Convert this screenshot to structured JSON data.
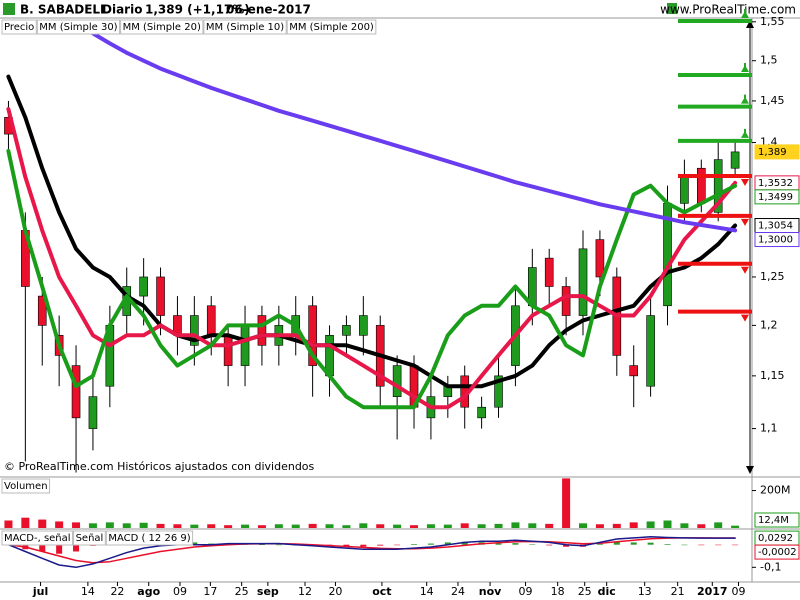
{
  "chart_data": [
    {
      "type": "candlestick",
      "title": "B. SABADELL",
      "period": "Diario",
      "quote": "1,389 (+1,17%)",
      "date": "06-ene-2017",
      "source": "www.ProRealTime.com",
      "note": "© ProRealTime.com Históricos ajustados con dividendos",
      "price_name": "Precio",
      "log_y": true,
      "xlim": [
        -0.5,
        44
      ],
      "ylim": [
        1.056,
        1.555
      ],
      "yticks": [
        {
          "value": 1.1,
          "label": "1,1"
        },
        {
          "value": 1.15,
          "label": "1,15"
        },
        {
          "value": 1.2,
          "label": "1,2"
        },
        {
          "value": 1.25,
          "label": "1,25"
        },
        {
          "value": 1.4,
          "label": "1,4"
        },
        {
          "value": 1.45,
          "label": "1,45"
        },
        {
          "value": 1.5,
          "label": "1,5"
        },
        {
          "value": 1.55,
          "label": "1,55"
        }
      ],
      "up_color": "#1f9a1f",
      "down_color": "#e8102a",
      "open": [
        1.43,
        1.3,
        1.23,
        1.19,
        1.16,
        1.1,
        1.14,
        1.21,
        1.23,
        1.25,
        1.21,
        1.18,
        1.22,
        1.19,
        1.16,
        1.21,
        1.18,
        1.19,
        1.22,
        1.15,
        1.19,
        1.19,
        1.2,
        1.13,
        1.16,
        1.11,
        1.13,
        1.15,
        1.11,
        1.12,
        1.16,
        1.22,
        1.27,
        1.24,
        1.21,
        1.29,
        1.25,
        1.16,
        1.14,
        1.22,
        1.33,
        1.37,
        1.32,
        1.37
      ],
      "high": [
        1.45,
        1.32,
        1.25,
        1.21,
        1.18,
        1.15,
        1.22,
        1.26,
        1.27,
        1.26,
        1.23,
        1.23,
        1.23,
        1.2,
        1.22,
        1.22,
        1.22,
        1.23,
        1.23,
        1.2,
        1.21,
        1.23,
        1.21,
        1.17,
        1.17,
        1.15,
        1.15,
        1.16,
        1.13,
        1.17,
        1.24,
        1.28,
        1.28,
        1.25,
        1.3,
        1.3,
        1.26,
        1.18,
        1.23,
        1.35,
        1.38,
        1.38,
        1.4,
        1.4
      ],
      "low": [
        1.39,
        1.07,
        1.16,
        1.14,
        1.06,
        1.08,
        1.12,
        1.19,
        1.2,
        1.19,
        1.17,
        1.16,
        1.17,
        1.14,
        1.14,
        1.16,
        1.16,
        1.17,
        1.13,
        1.13,
        1.17,
        1.17,
        1.12,
        1.09,
        1.1,
        1.09,
        1.11,
        1.1,
        1.1,
        1.11,
        1.14,
        1.2,
        1.22,
        1.19,
        1.19,
        1.23,
        1.15,
        1.12,
        1.13,
        1.2,
        1.31,
        1.32,
        1.31,
        1.36
      ],
      "close": [
        1.41,
        1.24,
        1.2,
        1.17,
        1.11,
        1.13,
        1.2,
        1.24,
        1.25,
        1.21,
        1.19,
        1.21,
        1.19,
        1.16,
        1.2,
        1.18,
        1.2,
        1.21,
        1.16,
        1.19,
        1.2,
        1.21,
        1.14,
        1.16,
        1.12,
        1.13,
        1.14,
        1.12,
        1.12,
        1.15,
        1.22,
        1.26,
        1.24,
        1.21,
        1.28,
        1.25,
        1.17,
        1.15,
        1.21,
        1.33,
        1.36,
        1.33,
        1.38,
        1.389
      ],
      "series": [
        {
          "name": "MM (Simple 30)",
          "color": "#000000",
          "values": [
            1.48,
            1.43,
            1.37,
            1.32,
            1.28,
            1.26,
            1.25,
            1.23,
            1.22,
            1.2,
            1.19,
            1.185,
            1.19,
            1.19,
            1.185,
            1.19,
            1.19,
            1.185,
            1.18,
            1.18,
            1.18,
            1.175,
            1.17,
            1.165,
            1.16,
            1.15,
            1.14,
            1.14,
            1.14,
            1.145,
            1.15,
            1.16,
            1.18,
            1.195,
            1.205,
            1.21,
            1.215,
            1.22,
            1.24,
            1.255,
            1.26,
            1.27,
            1.285,
            1.3054
          ]
        },
        {
          "name": "MM (Simple 20)",
          "color": "#e8174a",
          "values": [
            1.44,
            1.36,
            1.3,
            1.25,
            1.22,
            1.19,
            1.18,
            1.19,
            1.19,
            1.2,
            1.19,
            1.19,
            1.18,
            1.18,
            1.185,
            1.19,
            1.19,
            1.19,
            1.18,
            1.18,
            1.17,
            1.16,
            1.15,
            1.14,
            1.13,
            1.12,
            1.12,
            1.13,
            1.15,
            1.17,
            1.19,
            1.21,
            1.22,
            1.23,
            1.23,
            1.22,
            1.21,
            1.21,
            1.23,
            1.26,
            1.29,
            1.31,
            1.33,
            1.3532
          ]
        },
        {
          "name": "MM (Simple 10)",
          "color": "#1a9e1a",
          "values": [
            1.39,
            1.3,
            1.24,
            1.18,
            1.14,
            1.15,
            1.2,
            1.23,
            1.21,
            1.18,
            1.16,
            1.17,
            1.18,
            1.2,
            1.2,
            1.2,
            1.21,
            1.2,
            1.17,
            1.15,
            1.13,
            1.12,
            1.12,
            1.12,
            1.12,
            1.15,
            1.19,
            1.21,
            1.22,
            1.22,
            1.24,
            1.22,
            1.21,
            1.18,
            1.17,
            1.24,
            1.29,
            1.34,
            1.35,
            1.33,
            1.32,
            1.33,
            1.34,
            1.3499
          ]
        },
        {
          "name": "MM (Simple 200)",
          "color": "#6a3cf0",
          "values": [
            null,
            null,
            null,
            null,
            1.55,
            1.535,
            1.522,
            1.51,
            1.5,
            1.49,
            1.482,
            1.474,
            1.466,
            1.459,
            1.452,
            1.445,
            1.438,
            1.432,
            1.426,
            1.42,
            1.414,
            1.408,
            1.402,
            1.396,
            1.39,
            1.384,
            1.378,
            1.372,
            1.366,
            1.36,
            1.354,
            1.349,
            1.344,
            1.339,
            1.334,
            1.329,
            1.325,
            1.321,
            1.317,
            1.313,
            1.309,
            1.306,
            1.303,
            1.3
          ]
        }
      ],
      "levels": [
        {
          "value": 1.551,
          "color": "#22aa22",
          "dir": "up"
        },
        {
          "value": 1.482,
          "color": "#22aa22",
          "dir": "up"
        },
        {
          "value": 1.443,
          "color": "#22aa22",
          "dir": "up"
        },
        {
          "value": 1.402,
          "color": "#22aa22",
          "dir": "up"
        },
        {
          "value": 1.361,
          "color": "#ee1111",
          "dir": "down"
        },
        {
          "value": 1.316,
          "color": "#ee1111",
          "dir": "down"
        },
        {
          "value": 1.264,
          "color": "#ee1111",
          "dir": "down"
        },
        {
          "value": 1.214,
          "color": "#ee1111",
          "dir": "down"
        }
      ],
      "tags": [
        {
          "value": 1.389,
          "label": "1,389",
          "color": "#ffd21f"
        },
        {
          "value": 1.3532,
          "label": "1,3532",
          "color": "#e8174a"
        },
        {
          "value": 1.3499,
          "label": "1,3499",
          "color": "#1a9e1a"
        },
        {
          "value": 1.3054,
          "label": "1,3054",
          "color": "#000000"
        },
        {
          "value": 1.3,
          "label": "1,3000",
          "color": "#6a3cf0"
        }
      ]
    },
    {
      "type": "bar",
      "title": "Volumen",
      "xlim": [
        -0.5,
        44
      ],
      "ylim": [
        0,
        267000000
      ],
      "yticks": [
        {
          "value": 200000000,
          "label": "200M"
        }
      ],
      "values": [
        40000000,
        55000000,
        45000000,
        35000000,
        30000000,
        25000000,
        30000000,
        25000000,
        28000000,
        22000000,
        20000000,
        18000000,
        20000000,
        15000000,
        18000000,
        15000000,
        20000000,
        18000000,
        22000000,
        20000000,
        15000000,
        25000000,
        20000000,
        18000000,
        15000000,
        20000000,
        18000000,
        25000000,
        20000000,
        22000000,
        30000000,
        25000000,
        22000000,
        265000000,
        25000000,
        20000000,
        22000000,
        30000000,
        35000000,
        40000000,
        25000000,
        20000000,
        30000000,
        12400000
      ],
      "value_labels": [
        null,
        null,
        null,
        null,
        null,
        null,
        null,
        null,
        null,
        null,
        null,
        null,
        null,
        null,
        null,
        null,
        null,
        null,
        null,
        null,
        null,
        null,
        null,
        null,
        null,
        null,
        null,
        null,
        null,
        null,
        null,
        null,
        null,
        null,
        null,
        null,
        null,
        null,
        null,
        null,
        null,
        null,
        null,
        "12,4M"
      ]
    },
    {
      "type": "macd",
      "xlim": [
        -0.5,
        44
      ],
      "ylim": [
        -0.165,
        0.065
      ],
      "yticks": [
        {
          "value": -0.1,
          "label": "-0,1"
        }
      ],
      "xticks": [
        {
          "value": 1.9,
          "label": "jul"
        },
        {
          "value": 4.7,
          "label": "14"
        },
        {
          "value": 6.45,
          "label": "22"
        },
        {
          "value": 8.3,
          "label": "ago"
        },
        {
          "value": 10.15,
          "label": "09"
        },
        {
          "value": 11.95,
          "label": "17"
        },
        {
          "value": 13.8,
          "label": "25"
        },
        {
          "value": 15.35,
          "label": "sep"
        },
        {
          "value": 17.55,
          "label": "12"
        },
        {
          "value": 19.35,
          "label": "20"
        },
        {
          "value": 22.1,
          "label": "oct"
        },
        {
          "value": 24.75,
          "label": "14"
        },
        {
          "value": 26.6,
          "label": "24"
        },
        {
          "value": 28.5,
          "label": "nov"
        },
        {
          "value": 30.6,
          "label": "09"
        },
        {
          "value": 32.5,
          "label": "18"
        },
        {
          "value": 34.1,
          "label": "25"
        },
        {
          "value": 35.4,
          "label": "dic"
        },
        {
          "value": 37.65,
          "label": "13"
        },
        {
          "value": 39.6,
          "label": "21"
        },
        {
          "value": 41.65,
          "label": "2017"
        },
        {
          "value": 43.2,
          "label": "09"
        }
      ],
      "series": [
        {
          "name": "MACD-, señal",
          "kind": "histogram",
          "color": "#2a9a2a",
          "down_color": "#e8102a",
          "values": [
            0,
            -0.02,
            -0.03,
            -0.04,
            -0.03,
            -0.005,
            0.015,
            0.025,
            0.03,
            0.025,
            0.02,
            0.01,
            0.005,
            0.005,
            0.002,
            0.001,
            0,
            -0.003,
            -0.005,
            -0.006,
            -0.007,
            -0.008,
            -0.004,
            -0.002,
            0.003,
            0.005,
            0.01,
            0.013,
            0.011,
            0.006,
            0.007,
            0.001,
            -0.003,
            -0.009,
            -0.009,
            0.004,
            0.012,
            0.01,
            0.009,
            0.003,
            0,
            -0.001,
            -0.0005,
            -0.0002
          ]
        },
        {
          "name": "Señal",
          "kind": "line",
          "color": "#e8102a",
          "values": [
            0,
            -0.01,
            -0.03,
            -0.05,
            -0.07,
            -0.08,
            -0.075,
            -0.06,
            -0.045,
            -0.03,
            -0.02,
            -0.01,
            -0.005,
            0,
            0.003,
            0.004,
            0.005,
            0.003,
            0,
            -0.004,
            -0.008,
            -0.012,
            -0.016,
            -0.018,
            -0.018,
            -0.015,
            -0.01,
            -0.003,
            0.004,
            0.009,
            0.013,
            0.014,
            0.013,
            0.009,
            0.004,
            0.006,
            0.013,
            0.02,
            0.026,
            0.029,
            0.03,
            0.03,
            0.0295,
            0.0294
          ]
        },
        {
          "name": "MACD ( 12 26 9)",
          "kind": "line",
          "color": "#1a1a8c",
          "values": [
            0,
            -0.03,
            -0.06,
            -0.09,
            -0.1,
            -0.085,
            -0.06,
            -0.035,
            -0.015,
            -0.005,
            0,
            0,
            0,
            0.005,
            0.005,
            0.005,
            0.005,
            0,
            -0.005,
            -0.01,
            -0.015,
            -0.02,
            -0.02,
            -0.02,
            -0.015,
            -0.01,
            0,
            0.01,
            0.015,
            0.015,
            0.02,
            0.015,
            0.01,
            0,
            -0.005,
            0.01,
            0.025,
            0.03,
            0.035,
            0.032,
            0.03,
            0.029,
            0.029,
            0.0292
          ]
        }
      ],
      "tags": [
        {
          "value": 0.0292,
          "label": "0,0292",
          "color": "#1a9e1a"
        },
        {
          "value": -0.0002,
          "label": "-0,0002",
          "color": "#e8102a"
        }
      ]
    }
  ]
}
